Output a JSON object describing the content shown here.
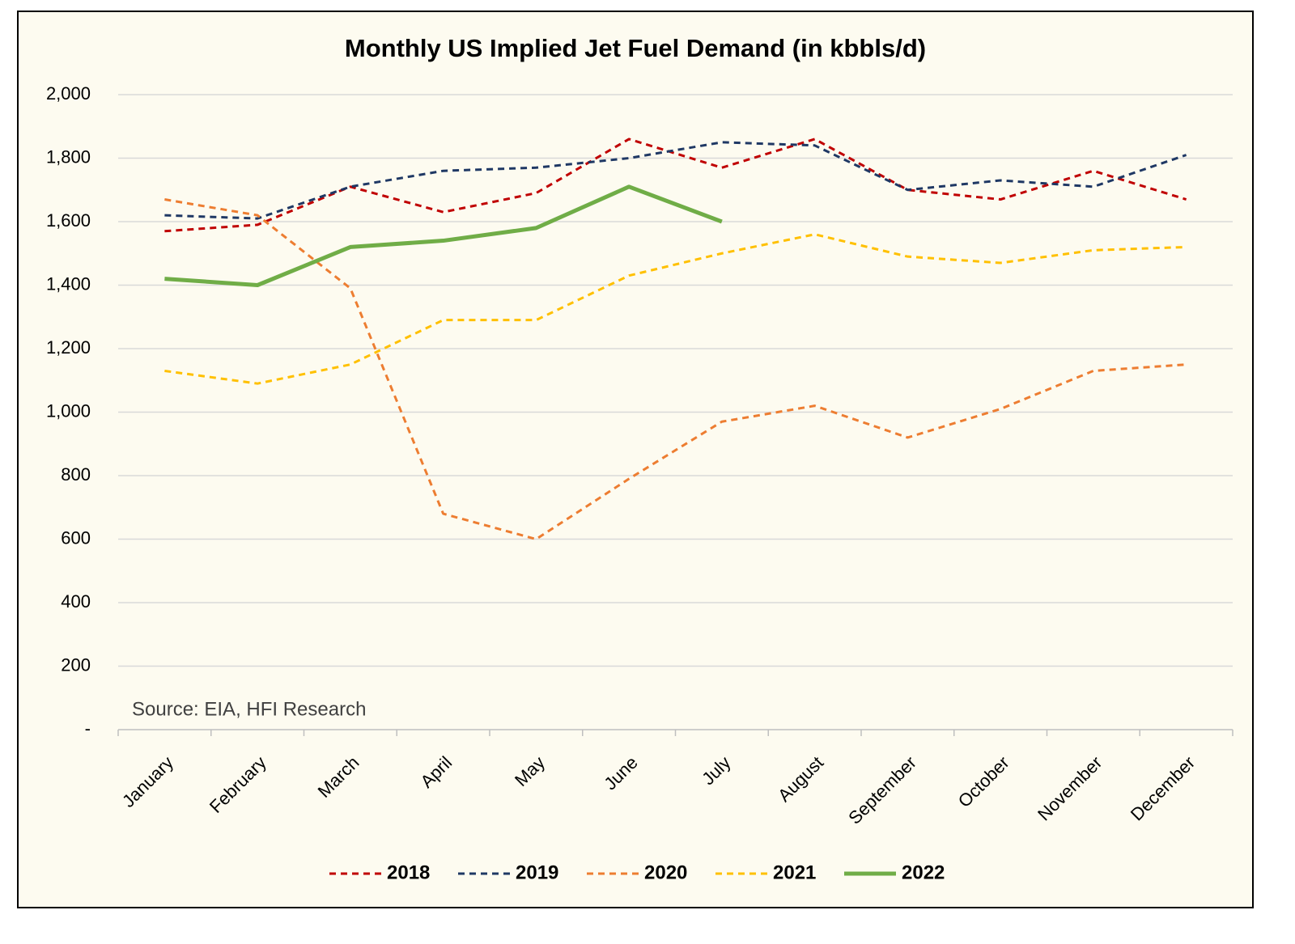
{
  "chart_data": {
    "type": "line",
    "title": "Monthly US Implied Jet Fuel Demand (in kbbls/d)",
    "annotation": "Source: EIA, HFI Research",
    "categories": [
      "January",
      "February",
      "March",
      "April",
      "May",
      "June",
      "July",
      "August",
      "September",
      "October",
      "November",
      "December"
    ],
    "series": [
      {
        "name": "2018",
        "color": "#c00000",
        "line_style": "dashed",
        "values": [
          1570,
          1590,
          1710,
          1630,
          1690,
          1860,
          1770,
          1860,
          1700,
          1670,
          1760,
          1670
        ]
      },
      {
        "name": "2019",
        "color": "#1f3864",
        "line_style": "dashed",
        "values": [
          1620,
          1610,
          1710,
          1760,
          1770,
          1800,
          1850,
          1840,
          1700,
          1730,
          1710,
          1810
        ]
      },
      {
        "name": "2020",
        "color": "#ed7d31",
        "line_style": "dashed",
        "values": [
          1670,
          1620,
          1390,
          680,
          600,
          790,
          970,
          1020,
          920,
          1010,
          1130,
          1150
        ]
      },
      {
        "name": "2021",
        "color": "#ffc000",
        "line_style": "dashed",
        "values": [
          1130,
          1090,
          1150,
          1290,
          1290,
          1430,
          1500,
          1560,
          1490,
          1470,
          1510,
          1520
        ]
      },
      {
        "name": "2022",
        "color": "#70ad47",
        "line_style": "solid",
        "values": [
          1420,
          1400,
          1520,
          1540,
          1580,
          1710,
          1600,
          null,
          null,
          null,
          null,
          null
        ]
      }
    ],
    "ylim": [
      0,
      2000
    ],
    "yticks": [
      {
        "value": 0,
        "label": "-"
      },
      200,
      400,
      600,
      800,
      {
        "value": 1000,
        "label": "1,000"
      },
      {
        "value": 1200,
        "label": "1,200"
      },
      {
        "value": 1400,
        "label": "1,400"
      },
      {
        "value": 1600,
        "label": "1,600"
      },
      {
        "value": 1800,
        "label": "1,800"
      },
      {
        "value": 2000,
        "label": "2,000"
      }
    ],
    "grid": true,
    "legend": "bottom"
  }
}
